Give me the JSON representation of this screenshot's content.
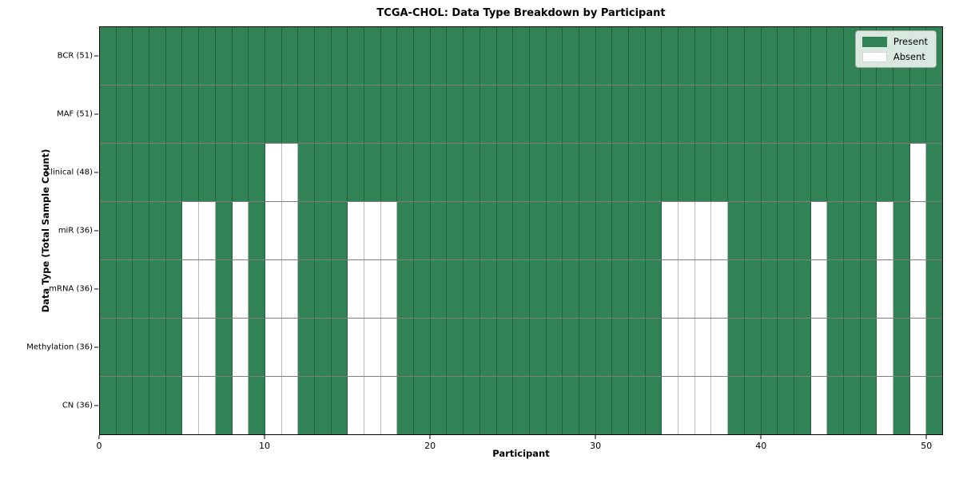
{
  "chart_data": {
    "type": "heatmap",
    "title": "TCGA-CHOL: Data Type Breakdown by Participant",
    "xlabel": "Participant",
    "ylabel": "Data Type (Total Sample Count)",
    "n_participants": 51,
    "x_range": [
      0,
      51
    ],
    "x_ticks": [
      0,
      10,
      20,
      30,
      40,
      50
    ],
    "grid": true,
    "rows": [
      {
        "label": "BCR (51)",
        "data_type": "BCR",
        "total_sample_count": 51,
        "absent_participants": []
      },
      {
        "label": "MAF (51)",
        "data_type": "MAF",
        "total_sample_count": 51,
        "absent_participants": []
      },
      {
        "label": "Clinical (48)",
        "data_type": "Clinical",
        "total_sample_count": 48,
        "absent_participants": [
          10,
          11,
          49
        ]
      },
      {
        "label": "miR (36)",
        "data_type": "miR",
        "total_sample_count": 36,
        "absent_participants": [
          5,
          6,
          8,
          10,
          11,
          15,
          16,
          17,
          34,
          35,
          36,
          37,
          43,
          47,
          49
        ]
      },
      {
        "label": "mRNA (36)",
        "data_type": "mRNA",
        "total_sample_count": 36,
        "absent_participants": [
          5,
          6,
          8,
          10,
          11,
          15,
          16,
          17,
          34,
          35,
          36,
          37,
          43,
          47,
          49
        ]
      },
      {
        "label": "Methylation (36)",
        "data_type": "Methylation",
        "total_sample_count": 36,
        "absent_participants": [
          5,
          6,
          8,
          10,
          11,
          15,
          16,
          17,
          34,
          35,
          36,
          37,
          43,
          47,
          49
        ]
      },
      {
        "label": "CN (36)",
        "data_type": "CN",
        "total_sample_count": 36,
        "absent_participants": [
          5,
          6,
          8,
          10,
          11,
          15,
          16,
          17,
          34,
          35,
          36,
          37,
          43,
          47,
          49
        ]
      }
    ],
    "legend": {
      "position": "upper right",
      "entries": [
        {
          "label": "Present",
          "color": "#318355"
        },
        {
          "label": "Absent",
          "color": "#ffffff"
        }
      ]
    },
    "colors": {
      "present": "#318355",
      "absent": "#ffffff",
      "cell_edge": "rgba(0,0,0,0.28)",
      "row_divider": "rgba(0,0,0,0.50)",
      "axes_border": "#000000",
      "background": "#ffffff"
    }
  }
}
